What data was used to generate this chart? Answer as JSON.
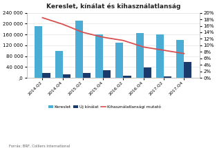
{
  "title": "Kereslet, kínálat és kihasználatlanság",
  "categories": [
    "2014.Q2",
    "2014.Q4",
    "2015.Q2",
    "2015.Q4",
    "2016.Q2",
    "2016.Q4",
    "2017.Q2",
    "2017.Q4"
  ],
  "kereslet": [
    190000,
    100000,
    210000,
    160000,
    130000,
    165000,
    160000,
    140000
  ],
  "uj_kinalat": [
    18000,
    13000,
    18000,
    28000,
    8000,
    38000,
    5000,
    60000
  ],
  "vacancy": [
    0.185,
    0.165,
    0.14,
    0.125,
    0.115,
    0.095,
    0.085,
    0.075
  ],
  "bar_color_kereslet": "#4badd4",
  "bar_color_uj": "#1a3a6b",
  "line_color": "#d94f4f",
  "source_text": "Forrás: BRF, Colliers International",
  "ylim_left": [
    0,
    240000
  ],
  "ylim_right": [
    0,
    0.2
  ],
  "yticks_left": [
    0,
    40000,
    80000,
    120000,
    160000,
    200000,
    240000
  ],
  "yticks_right": [
    0.0,
    0.02,
    0.04,
    0.06,
    0.08,
    0.1,
    0.12,
    0.14,
    0.16,
    0.18,
    0.2
  ]
}
